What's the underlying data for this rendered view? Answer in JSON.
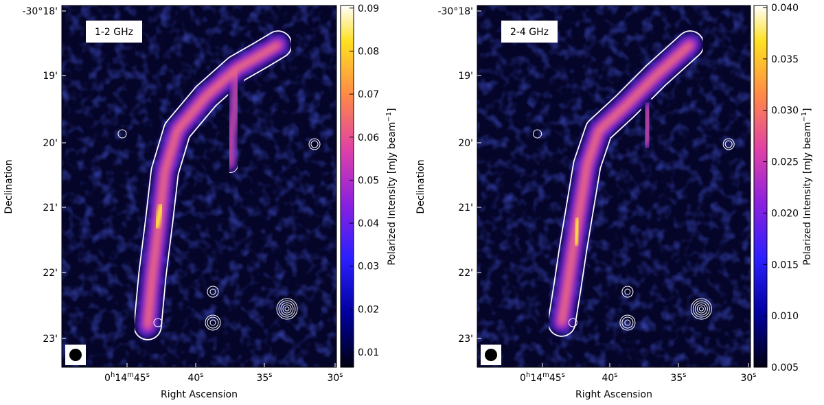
{
  "panels": [
    {
      "label": "1-2 GHz",
      "clim": [
        0.0065,
        0.0906
      ],
      "cticks": [
        0.01,
        0.02,
        0.03,
        0.04,
        0.05,
        0.06,
        0.07,
        0.08,
        0.09
      ],
      "colorbar_label": [
        "Polarized Intensity [mJy beam",
        "−1",
        "]"
      ],
      "xlabel": "Right Ascension",
      "ylabel": "Declination",
      "yticks": [
        "-30°18'",
        "19'",
        "20'",
        "21'",
        "22'",
        "23'"
      ],
      "xticks": [
        [
          "0",
          "h",
          "14",
          "m",
          "45",
          "s"
        ],
        [
          "40",
          "s"
        ],
        [
          "35",
          "s"
        ],
        [
          "30",
          "s"
        ]
      ]
    },
    {
      "label": "2-4 GHz",
      "clim": [
        0.005,
        0.0402
      ],
      "cticks": [
        {
          "value": 0.005,
          "label": "0.005"
        },
        {
          "value": 0.01,
          "label": "0.010"
        },
        {
          "value": 0.015,
          "label": "0.015"
        },
        {
          "value": 0.02,
          "label": "0.020"
        },
        {
          "value": 0.025,
          "label": "0.025"
        },
        {
          "value": 0.03,
          "label": "0.030"
        },
        {
          "value": 0.035,
          "label": "0.035"
        },
        {
          "value": 0.04,
          "label": "0.040"
        }
      ],
      "colorbar_label": [
        "Polarized Intensity [mJy beam",
        "−1",
        "]"
      ],
      "xlabel": "Right Ascension",
      "ylabel": "Declination",
      "yticks": [
        "-30°18'",
        "19'",
        "20'",
        "21'",
        "22'",
        "23'"
      ],
      "xticks": [
        [
          "0",
          "h",
          "14",
          "m",
          "45",
          "s"
        ],
        [
          "40",
          "s"
        ],
        [
          "35",
          "s"
        ],
        [
          "30",
          "s"
        ]
      ]
    }
  ]
}
